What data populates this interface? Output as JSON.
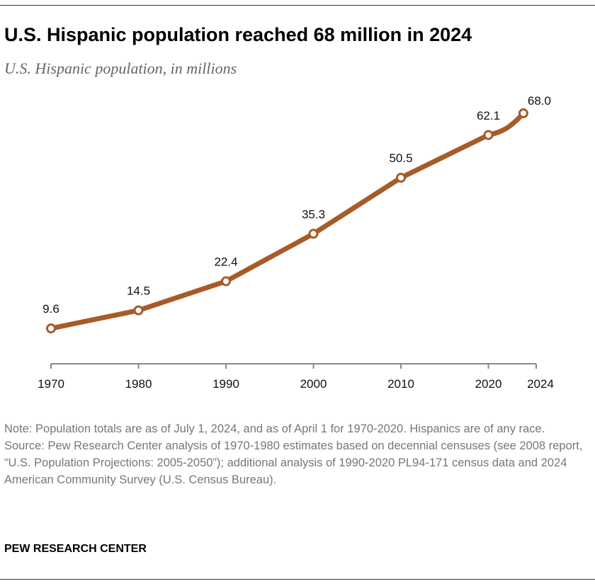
{
  "chart_data": {
    "type": "line",
    "title": "U.S. Hispanic population reached 68 million in 2024",
    "subtitle": "U.S. Hispanic population, in millions",
    "x": [
      1970,
      1980,
      1990,
      2000,
      2010,
      2020,
      2024
    ],
    "tick_labels": [
      "1970",
      "1980",
      "1990",
      "2000",
      "2010",
      "2020",
      "2024"
    ],
    "series": [
      {
        "values": [
          9.6,
          14.5,
          22.4,
          35.3,
          50.5,
          62.1,
          68.0
        ]
      }
    ],
    "data_labels": [
      "9.6",
      "14.5",
      "22.4",
      "35.3",
      "50.5",
      "62.1",
      "68.0"
    ],
    "xlim": [
      1970,
      2025
    ],
    "ylim": [
      0,
      68
    ],
    "grid": false,
    "color": "#A65C28"
  },
  "notes": {
    "note": "Note: Population totals are as of July 1, 2024, and as of April 1 for 1970-2020. Hispanics are of any race.",
    "source": "Source: Pew Research Center analysis of 1970-1980 estimates based on decennial censuses (see 2008 report, “U.S. Population Projections: 2005-2050”); additional analysis of 1990-2020 PL94-171 census data and 2024 American Community Survey (U.S. Census Bureau)."
  },
  "brand": "PEW RESEARCH CENTER"
}
